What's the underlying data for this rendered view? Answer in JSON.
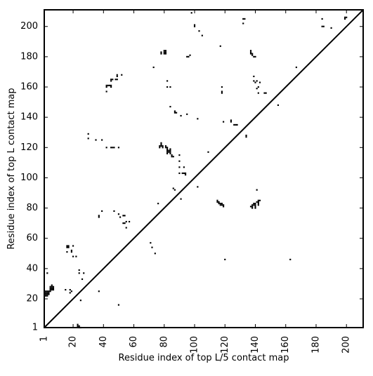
{
  "chart_data": {
    "type": "scatter",
    "xlabel": "Residue index of top L/5 contact map",
    "ylabel": "Residue index of top L contact map",
    "xlim": [
      1,
      211
    ],
    "ylim": [
      1,
      211
    ],
    "xticks": [
      1,
      20,
      40,
      60,
      80,
      100,
      120,
      140,
      160,
      180,
      200
    ],
    "xtick_labels": [
      "1",
      "20",
      "40",
      "60",
      "80",
      "100",
      "120",
      "140",
      "160",
      "180",
      "200"
    ],
    "yticks": [
      1,
      20,
      40,
      60,
      80,
      100,
      120,
      140,
      160,
      180,
      200
    ],
    "ytick_labels": [
      "1",
      "20",
      "40",
      "60",
      "80",
      "100",
      "120",
      "140",
      "160",
      "180",
      "200"
    ],
    "grid": false,
    "diagonal_line": true,
    "colors": {
      "marker": "#000000",
      "line": "#000000",
      "background": "#ffffff"
    },
    "series": [
      {
        "values": [
          [
            2,
            22
          ],
          [
            2,
            23
          ],
          [
            2,
            24
          ],
          [
            2,
            25
          ],
          [
            3,
            22
          ],
          [
            3,
            23
          ],
          [
            3,
            24
          ],
          [
            3,
            25
          ],
          [
            4,
            23
          ],
          [
            4,
            24
          ],
          [
            4,
            25
          ],
          [
            5,
            25
          ],
          [
            5,
            26
          ],
          [
            5,
            27
          ],
          [
            5,
            28
          ],
          [
            6,
            26
          ],
          [
            6,
            27
          ],
          [
            6,
            28
          ],
          [
            6,
            29
          ],
          [
            7,
            26
          ],
          [
            7,
            27
          ],
          [
            7,
            28
          ],
          [
            3,
            37
          ],
          [
            15,
            26
          ],
          [
            16,
            51
          ],
          [
            16,
            54
          ],
          [
            16,
            55
          ],
          [
            17,
            54
          ],
          [
            17,
            55
          ],
          [
            18,
            24
          ],
          [
            18,
            26
          ],
          [
            19,
            25
          ],
          [
            19,
            51
          ],
          [
            19,
            52
          ],
          [
            20,
            48
          ],
          [
            20,
            55
          ],
          [
            22,
            48
          ],
          [
            23,
            2
          ],
          [
            23,
            3
          ],
          [
            24,
            1
          ],
          [
            24,
            2
          ],
          [
            24,
            37
          ],
          [
            24,
            39
          ],
          [
            25,
            1
          ],
          [
            25,
            19
          ],
          [
            26,
            33
          ],
          [
            27,
            37
          ],
          [
            30,
            126
          ],
          [
            30,
            129
          ],
          [
            35,
            125
          ],
          [
            37,
            25
          ],
          [
            37,
            74
          ],
          [
            37,
            75
          ],
          [
            39,
            78
          ],
          [
            39,
            125
          ],
          [
            42,
            120
          ],
          [
            42,
            157
          ],
          [
            42,
            160
          ],
          [
            42,
            161
          ],
          [
            43,
            161
          ],
          [
            44,
            161
          ],
          [
            45,
            120
          ],
          [
            45,
            160
          ],
          [
            45,
            161
          ],
          [
            45,
            164
          ],
          [
            45,
            165
          ],
          [
            46,
            120
          ],
          [
            46,
            165
          ],
          [
            47,
            78
          ],
          [
            47,
            120
          ],
          [
            48,
            165
          ],
          [
            49,
            165
          ],
          [
            49,
            167
          ],
          [
            49,
            168
          ],
          [
            50,
            16
          ],
          [
            50,
            76
          ],
          [
            50,
            120
          ],
          [
            51,
            74
          ],
          [
            52,
            168
          ],
          [
            53,
            70
          ],
          [
            53,
            75
          ],
          [
            54,
            70
          ],
          [
            54,
            75
          ],
          [
            55,
            67
          ],
          [
            55,
            71
          ],
          [
            57,
            71
          ],
          [
            71,
            57
          ],
          [
            72,
            54
          ],
          [
            73,
            173
          ],
          [
            74,
            50
          ],
          [
            76,
            83
          ],
          [
            77,
            120
          ],
          [
            77,
            121
          ],
          [
            78,
            121
          ],
          [
            78,
            122
          ],
          [
            78,
            123
          ],
          [
            78,
            182
          ],
          [
            78,
            183
          ],
          [
            79,
            120
          ],
          [
            79,
            121
          ],
          [
            80,
            182
          ],
          [
            80,
            183
          ],
          [
            80,
            184
          ],
          [
            81,
            120
          ],
          [
            81,
            121
          ],
          [
            81,
            182
          ],
          [
            81,
            183
          ],
          [
            81,
            184
          ],
          [
            82,
            116
          ],
          [
            82,
            117
          ],
          [
            82,
            118
          ],
          [
            82,
            119
          ],
          [
            82,
            120
          ],
          [
            82,
            160
          ],
          [
            82,
            164
          ],
          [
            83,
            117
          ],
          [
            83,
            118
          ],
          [
            84,
            116
          ],
          [
            84,
            117
          ],
          [
            84,
            118
          ],
          [
            84,
            119
          ],
          [
            84,
            147
          ],
          [
            84,
            160
          ],
          [
            85,
            114
          ],
          [
            85,
            115
          ],
          [
            86,
            93
          ],
          [
            86,
            114
          ],
          [
            87,
            92
          ],
          [
            87,
            143
          ],
          [
            87,
            144
          ],
          [
            88,
            143
          ],
          [
            90,
            103
          ],
          [
            90,
            107
          ],
          [
            90,
            111
          ],
          [
            90,
            115
          ],
          [
            91,
            86
          ],
          [
            91,
            141
          ],
          [
            92,
            103
          ],
          [
            93,
            103
          ],
          [
            93,
            107
          ],
          [
            94,
            102
          ],
          [
            94,
            103
          ],
          [
            95,
            142
          ],
          [
            95,
            180
          ],
          [
            96,
            180
          ],
          [
            97,
            181
          ],
          [
            98,
            209
          ],
          [
            100,
            200
          ],
          [
            100,
            201
          ],
          [
            102,
            94
          ],
          [
            102,
            139
          ],
          [
            103,
            197
          ],
          [
            105,
            194
          ],
          [
            109,
            117
          ],
          [
            115,
            84
          ],
          [
            115,
            85
          ],
          [
            116,
            83
          ],
          [
            116,
            84
          ],
          [
            117,
            82
          ],
          [
            117,
            83
          ],
          [
            117,
            187
          ],
          [
            118,
            82
          ],
          [
            118,
            83
          ],
          [
            118,
            156
          ],
          [
            118,
            157
          ],
          [
            118,
            160
          ],
          [
            119,
            81
          ],
          [
            119,
            82
          ],
          [
            119,
            137
          ],
          [
            120,
            46
          ],
          [
            124,
            137
          ],
          [
            124,
            138
          ],
          [
            126,
            135
          ],
          [
            127,
            135
          ],
          [
            128,
            135
          ],
          [
            132,
            202
          ],
          [
            132,
            205
          ],
          [
            133,
            205
          ],
          [
            134,
            127
          ],
          [
            134,
            128
          ],
          [
            137,
            81
          ],
          [
            137,
            182
          ],
          [
            137,
            183
          ],
          [
            137,
            184
          ],
          [
            138,
            80
          ],
          [
            138,
            81
          ],
          [
            138,
            82
          ],
          [
            138,
            181
          ],
          [
            138,
            182
          ],
          [
            139,
            82
          ],
          [
            139,
            83
          ],
          [
            139,
            164
          ],
          [
            139,
            167
          ],
          [
            139,
            180
          ],
          [
            140,
            80
          ],
          [
            140,
            81
          ],
          [
            140,
            82
          ],
          [
            140,
            83
          ],
          [
            140,
            163
          ],
          [
            140,
            180
          ],
          [
            141,
            84
          ],
          [
            141,
            92
          ],
          [
            141,
            159
          ],
          [
            141,
            164
          ],
          [
            142,
            82
          ],
          [
            142,
            83
          ],
          [
            142,
            84
          ],
          [
            142,
            85
          ],
          [
            142,
            156
          ],
          [
            142,
            160
          ],
          [
            143,
            85
          ],
          [
            143,
            163
          ],
          [
            146,
            156
          ],
          [
            147,
            156
          ],
          [
            155,
            148
          ],
          [
            163,
            46
          ],
          [
            167,
            173
          ],
          [
            184,
            200
          ],
          [
            184,
            205
          ],
          [
            185,
            200
          ],
          [
            190,
            199
          ],
          [
            199,
            205
          ],
          [
            199,
            206
          ],
          [
            200,
            206
          ]
        ]
      }
    ]
  }
}
